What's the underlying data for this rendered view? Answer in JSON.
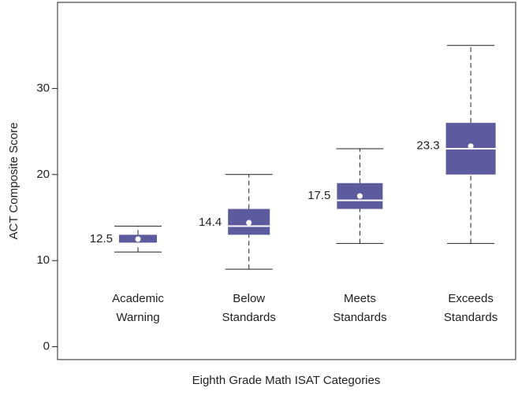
{
  "chart_data": {
    "type": "box",
    "x_label": "Eighth Grade Math ISAT Categories",
    "y_label": "ACT Composite Score",
    "categories": [
      [
        "Academic",
        "Warning"
      ],
      [
        "Below",
        "Standards"
      ],
      [
        "Meets",
        "Standards"
      ],
      [
        "Exceeds",
        "Standards"
      ]
    ],
    "boxes": [
      {
        "whisker_low": 11,
        "q1": 12,
        "median": 12,
        "q3": 13,
        "whisker_high": 14,
        "mean": 12.5
      },
      {
        "whisker_low": 9,
        "q1": 13,
        "median": 14,
        "q3": 16,
        "whisker_high": 20,
        "mean": 14.4
      },
      {
        "whisker_low": 12,
        "q1": 16,
        "median": 17,
        "q3": 19,
        "whisker_high": 23,
        "mean": 17.5
      },
      {
        "whisker_low": 12,
        "q1": 20,
        "median": 23,
        "q3": 26,
        "whisker_high": 35,
        "mean": 23.3
      }
    ],
    "color": "#5c5b9d",
    "ylim": [
      -1.5,
      40
    ],
    "yticks": [
      0,
      10,
      20,
      30
    ],
    "grid": false
  }
}
